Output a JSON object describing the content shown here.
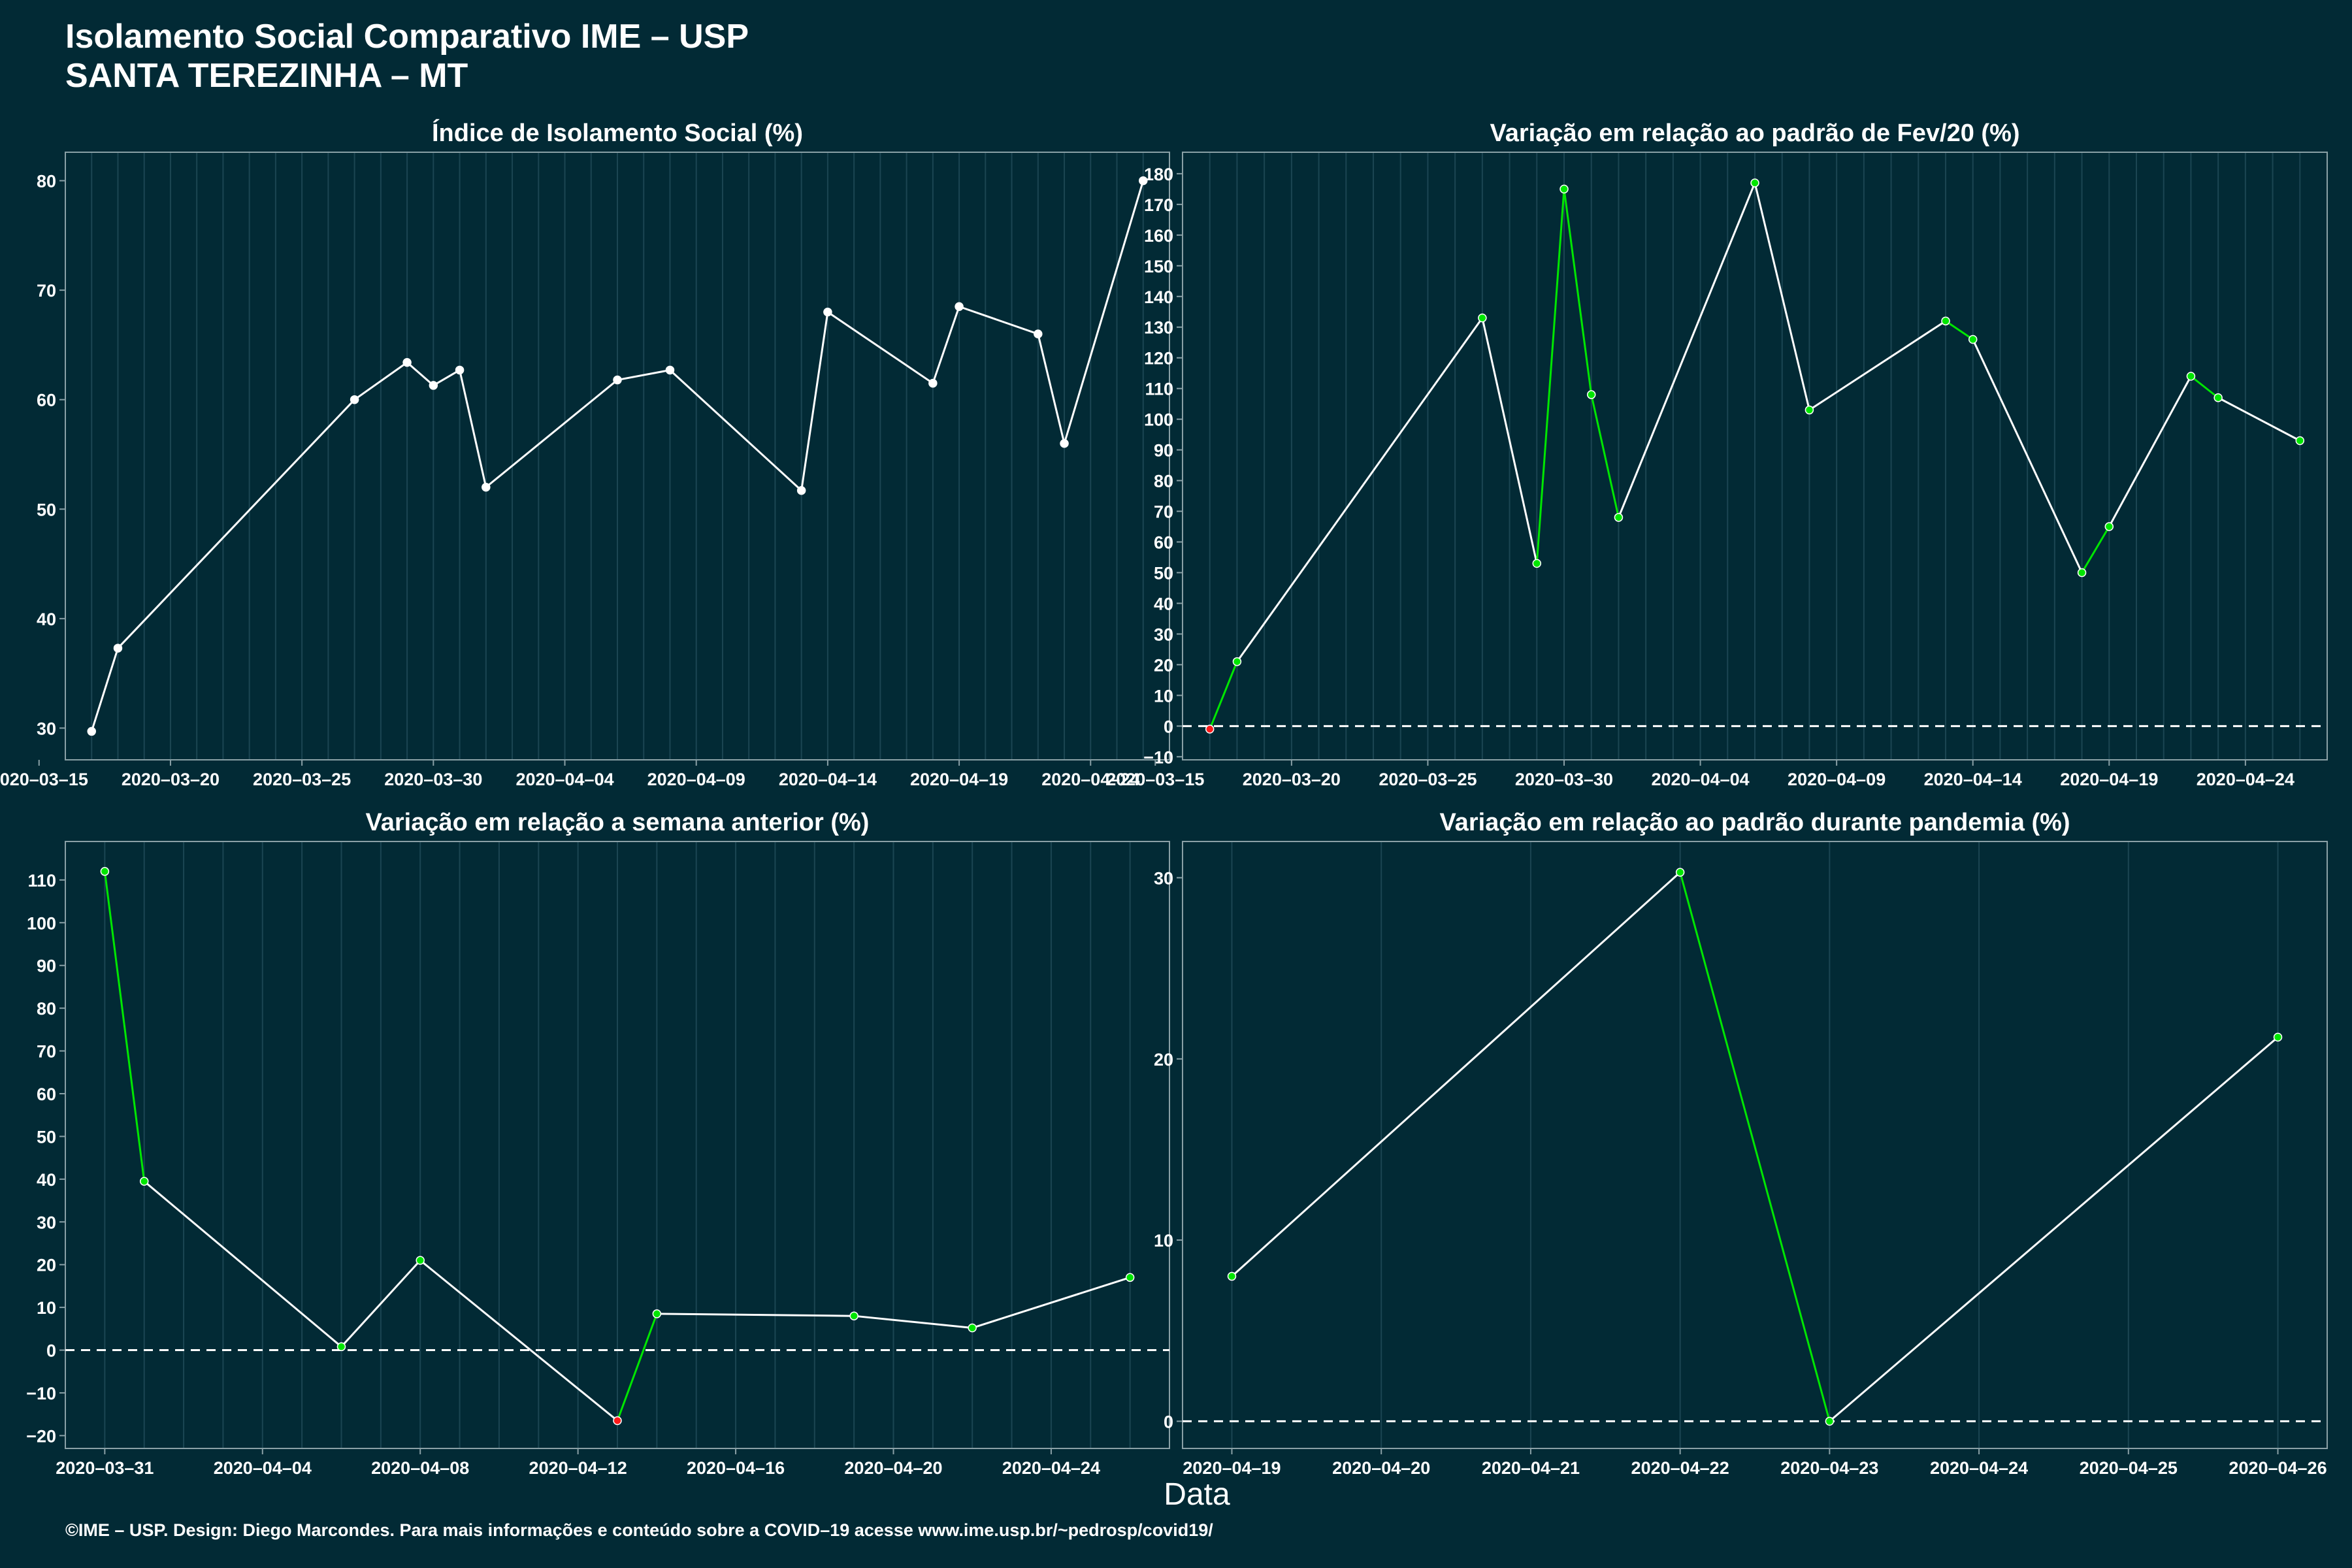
{
  "header": {
    "title_line1": "Isolamento Social Comparativo IME – USP",
    "title_line2": "SANTA TEREZINHA – MT"
  },
  "x_axis_label": "Data",
  "footer": "©IME – USP. Design: Diego Marcondes. Para mais informações e conteúdo sobre a COVID–19 acesse www.ime.usp.br/~pedrosp/covid19/",
  "colors": {
    "background": "#022a35",
    "frame": "#8aa0a6",
    "grid": "#1b4552",
    "line_neutral": "#ffffff",
    "increase": "#00e600",
    "decrease": "#ff1a1a"
  },
  "chart_data": [
    {
      "type": "line",
      "title": "Índice de Isolamento Social (%)",
      "x_tick_labels": [
        "2020–03–15",
        "2020–03–20",
        "2020–03–25",
        "2020–03–30",
        "2020–04–04",
        "2020–04–09",
        "2020–04–14",
        "2020–04–19",
        "2020–04–24"
      ],
      "y_ticks": [
        30,
        40,
        50,
        60,
        70,
        80
      ],
      "ylim": [
        27.1,
        82.6
      ],
      "xlim": [
        "2020-03-16",
        "2020-04-27"
      ],
      "x": [
        "2020-03-17",
        "2020-03-18",
        "2020-03-27",
        "2020-03-29",
        "2020-03-30",
        "2020-03-31",
        "2020-04-01",
        "2020-04-06",
        "2020-04-08",
        "2020-04-13",
        "2020-04-14",
        "2020-04-18",
        "2020-04-19",
        "2020-04-22",
        "2020-04-23",
        "2020-04-26"
      ],
      "values": [
        29.7,
        37.3,
        60.0,
        63.4,
        61.3,
        62.7,
        52.0,
        61.8,
        62.7,
        51.7,
        68.0,
        61.5,
        68.5,
        66.0,
        56.0,
        80.0
      ],
      "dashed_zero": false
    },
    {
      "type": "line",
      "title": "Variação em relação ao padrão de Fev/20 (%)",
      "x_tick_labels": [
        "2020–03–15",
        "2020–03–20",
        "2020–03–25",
        "2020–03–30",
        "2020–04–04",
        "2020–04–09",
        "2020–04–14",
        "2020–04–19",
        "2020–04–24"
      ],
      "y_ticks": [
        -10,
        0,
        10,
        20,
        30,
        40,
        50,
        60,
        70,
        80,
        90,
        100,
        110,
        120,
        130,
        140,
        150,
        160,
        170,
        180
      ],
      "ylim": [
        -11,
        187
      ],
      "xlim": [
        "2020-03-16",
        "2020-04-27"
      ],
      "x": [
        "2020-03-17",
        "2020-03-18",
        "2020-03-27",
        "2020-03-29",
        "2020-03-30",
        "2020-03-31",
        "2020-04-01",
        "2020-04-06",
        "2020-04-08",
        "2020-04-13",
        "2020-04-14",
        "2020-04-18",
        "2020-04-19",
        "2020-04-22",
        "2020-04-23",
        "2020-04-26"
      ],
      "values": [
        -1,
        21,
        133,
        53,
        175,
        108,
        68,
        177,
        103,
        132,
        126,
        50,
        65,
        114,
        107,
        93
      ],
      "dashed_zero": true
    },
    {
      "type": "line",
      "title": "Variação em relação a semana anterior (%)",
      "x_tick_labels": [
        "2020–03–31",
        "2020–04–04",
        "2020–04–08",
        "2020–04–12",
        "2020–04–16",
        "2020–04–20",
        "2020–04–24"
      ],
      "y_ticks": [
        -20,
        -10,
        0,
        10,
        20,
        30,
        40,
        50,
        60,
        70,
        80,
        90,
        100,
        110
      ],
      "ylim": [
        -23,
        119
      ],
      "xlim": [
        "2020-03-30",
        "2020-04-27"
      ],
      "x": [
        "2020-03-31",
        "2020-04-01",
        "2020-04-06",
        "2020-04-08",
        "2020-04-13",
        "2020-04-14",
        "2020-04-19",
        "2020-04-22",
        "2020-04-26"
      ],
      "values": [
        112,
        39.5,
        0.8,
        21,
        -16.5,
        8.5,
        8,
        5.2,
        17
      ],
      "dashed_zero": true
    },
    {
      "type": "line",
      "title": "Variação em relação ao padrão durante pandemia (%)",
      "x_tick_labels": [
        "2020–04–19",
        "2020–04–20",
        "2020–04–21",
        "2020–04–22",
        "2020–04–23",
        "2020–04–24",
        "2020–04–25",
        "2020–04–26"
      ],
      "y_ticks": [
        0,
        10,
        20,
        30
      ],
      "ylim": [
        -1.5,
        32.0
      ],
      "xlim": [
        "2020-04-18.67",
        "2020-04-26.33"
      ],
      "x": [
        "2020-04-19",
        "2020-04-22",
        "2020-04-23",
        "2020-04-26"
      ],
      "values": [
        8,
        30.3,
        0,
        21.2
      ],
      "dashed_zero": true
    }
  ]
}
